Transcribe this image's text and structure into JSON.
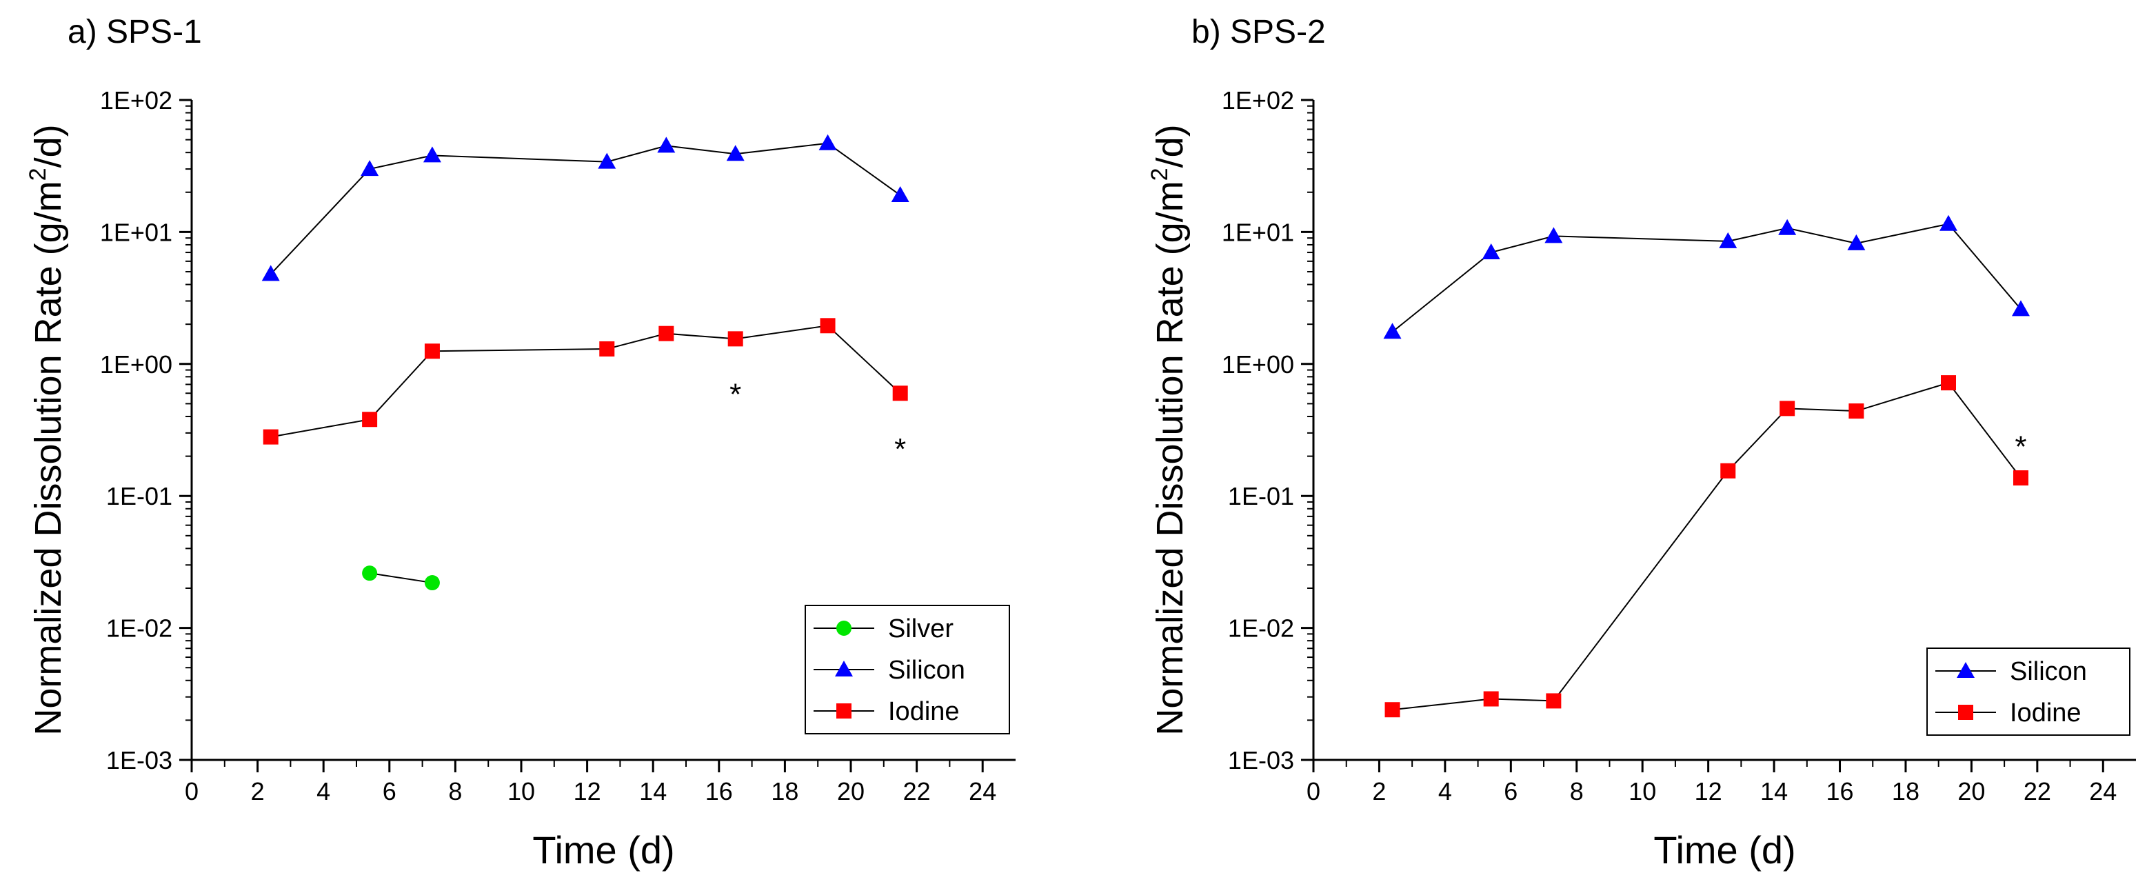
{
  "chart_data": [
    {
      "type": "line",
      "panel_label": "a) SPS-1",
      "title": "",
      "xlabel": "Time (d)",
      "ylabel_main": "Normalized Dissolution Rate (g/m",
      "ylabel_sup": "2",
      "ylabel_end": "/d)",
      "xscale": "linear",
      "yscale": "log",
      "xlim": [
        0,
        25
      ],
      "ylim": [
        0.001,
        100
      ],
      "xticks": [
        0,
        2,
        4,
        6,
        8,
        10,
        12,
        14,
        16,
        18,
        20,
        22,
        24
      ],
      "xtick_labels": [
        "0",
        "2",
        "4",
        "6",
        "8",
        "10",
        "12",
        "14",
        "16",
        "18",
        "20",
        "22",
        "24"
      ],
      "yticks": [
        0.001,
        0.01,
        0.1,
        1,
        10,
        100
      ],
      "ytick_labels": [
        "1E-03",
        "1E-02",
        "1E-01",
        "1E+00",
        "1E+01",
        "1E+02"
      ],
      "legend_position": "bottom-right",
      "series": [
        {
          "name": "Silver",
          "color": "#00e600",
          "marker": "circle",
          "x": [
            5.4,
            7.3
          ],
          "y": [
            0.026,
            0.022
          ]
        },
        {
          "name": "Silicon",
          "color": "#0000ff",
          "marker": "triangle",
          "x": [
            2.4,
            5.4,
            7.3,
            12.6,
            14.4,
            16.5,
            19.3,
            21.5
          ],
          "y": [
            4.8,
            30,
            38,
            34,
            45,
            39,
            47,
            19
          ]
        },
        {
          "name": "Iodine",
          "color": "#ff0000",
          "marker": "square",
          "x": [
            2.4,
            5.4,
            7.3,
            12.6,
            14.4,
            16.5,
            19.3,
            21.5
          ],
          "y": [
            0.28,
            0.38,
            1.25,
            1.3,
            1.7,
            1.55,
            1.95,
            0.6
          ]
        }
      ],
      "annotations": [
        {
          "text": "*",
          "x": 16.5,
          "y": 0.6
        },
        {
          "text": "*",
          "x": 21.5,
          "y": 0.23
        }
      ]
    },
    {
      "type": "line",
      "panel_label": "b) SPS-2",
      "title": "",
      "xlabel": "Time (d)",
      "ylabel_main": "Normalized Dissolution Rate (g/m",
      "ylabel_sup": "2",
      "ylabel_end": "/d)",
      "xscale": "linear",
      "yscale": "log",
      "xlim": [
        0,
        25
      ],
      "ylim": [
        0.001,
        100
      ],
      "xticks": [
        0,
        2,
        4,
        6,
        8,
        10,
        12,
        14,
        16,
        18,
        20,
        22,
        24
      ],
      "xtick_labels": [
        "0",
        "2",
        "4",
        "6",
        "8",
        "10",
        "12",
        "14",
        "16",
        "18",
        "20",
        "22",
        "24"
      ],
      "yticks": [
        0.001,
        0.01,
        0.1,
        1,
        10,
        100
      ],
      "ytick_labels": [
        "1E-03",
        "1E-02",
        "1E-01",
        "1E+00",
        "1E+01",
        "1E+02"
      ],
      "legend_position": "bottom-right",
      "series": [
        {
          "name": "Silicon",
          "color": "#0000ff",
          "marker": "triangle",
          "x": [
            2.4,
            5.4,
            7.3,
            12.6,
            14.4,
            16.5,
            19.3,
            21.5
          ],
          "y": [
            1.75,
            7.0,
            9.3,
            8.5,
            10.7,
            8.2,
            11.5,
            2.6
          ]
        },
        {
          "name": "Iodine",
          "color": "#ff0000",
          "marker": "square",
          "x": [
            2.4,
            5.4,
            7.3,
            12.6,
            14.4,
            16.5,
            19.3,
            21.5
          ],
          "y": [
            0.0024,
            0.0029,
            0.0028,
            0.155,
            0.46,
            0.44,
            0.72,
            0.137
          ]
        }
      ],
      "annotations": [
        {
          "text": "*",
          "x": 21.5,
          "y": 0.24
        }
      ]
    }
  ]
}
